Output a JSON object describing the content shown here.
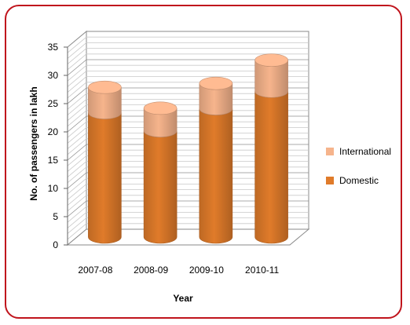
{
  "chart_data": {
    "type": "bar",
    "stacked": true,
    "three_d": true,
    "title": "",
    "xlabel": "Year",
    "ylabel": "No. of passengers in lakh",
    "ylim": [
      0,
      35
    ],
    "yticks": [
      0,
      5,
      10,
      15,
      20,
      25,
      30,
      35
    ],
    "categories": [
      "2007-08",
      "2008-09",
      "2009-10",
      "2010-11"
    ],
    "series": [
      {
        "name": "Domestic",
        "values": [
          22,
          18.8,
          22.7,
          25.8
        ],
        "color": "#e07b2a"
      },
      {
        "name": "International",
        "values": [
          4.5,
          4,
          4.5,
          5.5
        ],
        "color": "#f6b48c"
      }
    ],
    "legend_position": "right",
    "grid": true
  }
}
